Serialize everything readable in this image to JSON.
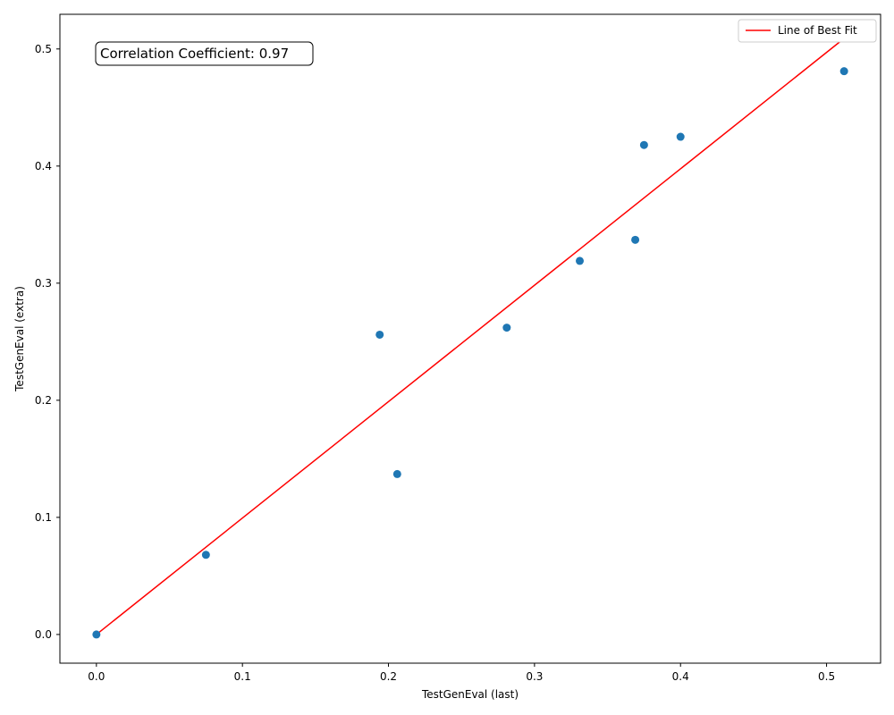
{
  "chart_data": {
    "type": "scatter",
    "xlabel": "TestGenEval (last)",
    "ylabel": "TestGenEval (extra)",
    "xlim": [
      -0.025,
      0.537
    ],
    "ylim": [
      -0.0245,
      0.5296
    ],
    "x_ticks": [
      0.0,
      0.1,
      0.2,
      0.3,
      0.4,
      0.5
    ],
    "x_tick_labels": [
      "0.0",
      "0.1",
      "0.2",
      "0.3",
      "0.4",
      "0.5"
    ],
    "y_ticks": [
      0.0,
      0.1,
      0.2,
      0.3,
      0.4,
      0.5
    ],
    "y_tick_labels": [
      "0.0",
      "0.1",
      "0.2",
      "0.3",
      "0.4",
      "0.5"
    ],
    "grid": false,
    "legend_placement": "top-right",
    "points": [
      {
        "x": 0.0,
        "y": 0.0
      },
      {
        "x": 0.075,
        "y": 0.068
      },
      {
        "x": 0.194,
        "y": 0.256
      },
      {
        "x": 0.206,
        "y": 0.137
      },
      {
        "x": 0.281,
        "y": 0.262
      },
      {
        "x": 0.331,
        "y": 0.319
      },
      {
        "x": 0.369,
        "y": 0.337
      },
      {
        "x": 0.375,
        "y": 0.418
      },
      {
        "x": 0.4,
        "y": 0.425
      },
      {
        "x": 0.512,
        "y": 0.481
      }
    ],
    "fit_line": {
      "name": "Line of Best Fit",
      "x": [
        0.0,
        0.512
      ],
      "y": [
        0.0,
        0.509
      ]
    },
    "annotation": "Correlation Coefficient: 0.97",
    "colors": {
      "points": "#1f77b4",
      "fit_line": "#ff0000",
      "axes": "#000000"
    }
  }
}
